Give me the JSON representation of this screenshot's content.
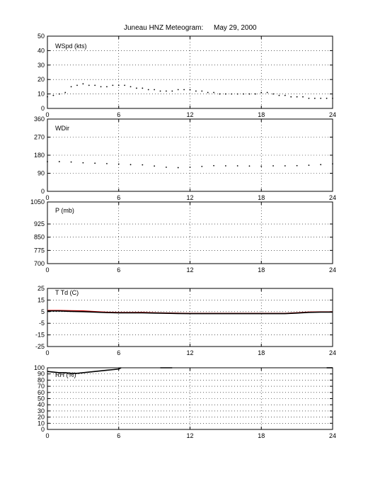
{
  "title": {
    "station": "Juneau HNZ Meteogram:",
    "date": "May 29, 2000"
  },
  "chart_data": [
    {
      "id": "wspd",
      "type": "scatter",
      "label": "WSpd (kts)",
      "xlim": [
        0,
        24
      ],
      "ylim": [
        0,
        50
      ],
      "xticks": [
        0,
        6,
        12,
        18,
        24
      ],
      "yticks": [
        0,
        10,
        20,
        30,
        40,
        50
      ],
      "grid": "dotted",
      "series": [
        {
          "color": "#000000",
          "x": [
            0,
            0.5,
            1,
            1.5,
            2,
            2.5,
            3,
            3.5,
            4,
            4.5,
            5,
            5.5,
            6,
            6.5,
            7,
            7.5,
            8,
            8.5,
            9,
            9.5,
            10,
            10.5,
            11,
            11.5,
            12,
            12.5,
            13,
            13.5,
            14,
            14.5,
            15,
            15.5,
            16,
            16.5,
            17,
            17.5,
            18,
            18.5,
            19,
            19.5,
            20,
            20.5,
            21,
            21.5,
            22,
            22.5,
            23,
            23.5,
            24
          ],
          "values": [
            8,
            9,
            10,
            11,
            15,
            16,
            17,
            16,
            16,
            15,
            15,
            16,
            16,
            16,
            15,
            14,
            14,
            13,
            13,
            12,
            12,
            12,
            13,
            13,
            13,
            12,
            12,
            11,
            11,
            10,
            10,
            10,
            10,
            10,
            10,
            10,
            11,
            11,
            10,
            9,
            9,
            8,
            8,
            8,
            7,
            7,
            7,
            7,
            7
          ]
        }
      ]
    },
    {
      "id": "wdir",
      "type": "scatter",
      "label": "WDir",
      "xlim": [
        0,
        24
      ],
      "ylim": [
        0,
        360
      ],
      "xticks": [
        0,
        6,
        12,
        18,
        24
      ],
      "yticks": [
        0,
        90,
        180,
        270,
        360
      ],
      "grid": "dotted",
      "series": [
        {
          "color": "#000000",
          "x": [
            0,
            1,
            2,
            3,
            4,
            5,
            6,
            7,
            8,
            9,
            10,
            11,
            12,
            13,
            14,
            15,
            16,
            17,
            18,
            19,
            20,
            21,
            22,
            23,
            24
          ],
          "values": [
            148,
            148,
            146,
            142,
            140,
            138,
            136,
            133,
            132,
            126,
            120,
            118,
            120,
            124,
            128,
            127,
            127,
            126,
            125,
            127,
            127,
            128,
            130,
            133,
            137
          ]
        }
      ]
    },
    {
      "id": "pressure",
      "type": "line",
      "label": "P (mb)",
      "xlim": [
        0,
        24
      ],
      "ylim": [
        700,
        1050
      ],
      "xticks": [
        0,
        6,
        12,
        18,
        24
      ],
      "yticks": [
        700,
        775,
        850,
        925,
        1050
      ],
      "grid": "dotted",
      "series": []
    },
    {
      "id": "temp",
      "type": "line",
      "label": "T Td (C)",
      "xlim": [
        0,
        24
      ],
      "ylim": [
        -25,
        25
      ],
      "xticks": [
        0,
        6,
        12,
        18,
        24
      ],
      "yticks": [
        -25,
        -15,
        -5,
        5,
        15,
        25
      ],
      "grid": "dotted",
      "series": [
        {
          "color": "#cc0000",
          "x": [
            0,
            1,
            2,
            3,
            4,
            5,
            6,
            7,
            8,
            9,
            10,
            11,
            12,
            13,
            14,
            15,
            16,
            17,
            18,
            19,
            20,
            21,
            22,
            23,
            24
          ],
          "values": [
            6,
            6,
            5.8,
            5.6,
            5,
            4.5,
            4.2,
            4.2,
            4.3,
            4,
            3.8,
            3.6,
            3.5,
            3.5,
            3.5,
            3.5,
            3.5,
            3.5,
            3.5,
            3.5,
            3.5,
            4,
            4.6,
            4.8,
            4.8
          ]
        },
        {
          "color": "#000000",
          "x": [
            0,
            1,
            2,
            3,
            4,
            5,
            6,
            7,
            8,
            9,
            10,
            11,
            12,
            13,
            14,
            15,
            16,
            17,
            18,
            19,
            20,
            21,
            22,
            23,
            24
          ],
          "values": [
            5.6,
            5.6,
            5.2,
            5,
            4.6,
            4.2,
            4,
            4,
            4,
            3.8,
            3.6,
            3.4,
            3.3,
            3.3,
            3.3,
            3.3,
            3.3,
            3.3,
            3.3,
            3.3,
            3.3,
            3.8,
            4.4,
            4.6,
            4.6
          ]
        }
      ]
    },
    {
      "id": "rh",
      "type": "line",
      "label": "RH (%)",
      "xlim": [
        0,
        24
      ],
      "ylim": [
        0,
        100
      ],
      "xticks": [
        0,
        6,
        12,
        18,
        24
      ],
      "yticks": [
        0,
        10,
        20,
        30,
        40,
        50,
        60,
        70,
        80,
        90,
        100
      ],
      "grid": "dotted",
      "series": [
        {
          "color": "#000000",
          "x": [
            0,
            0.5,
            1,
            1.5,
            2,
            2.5,
            3,
            3.5,
            4,
            4.5,
            5,
            5.5,
            6,
            6.2
          ],
          "values": [
            94,
            93,
            92,
            92,
            91,
            91,
            92,
            93,
            94,
            95,
            96,
            97,
            98,
            100
          ]
        },
        {
          "color": "#000000",
          "x": [
            9.5,
            10.5
          ],
          "values": [
            100,
            100
          ]
        },
        {
          "color": "#000000",
          "x": [
            23.5,
            24
          ],
          "values": [
            100,
            100
          ]
        }
      ]
    }
  ]
}
